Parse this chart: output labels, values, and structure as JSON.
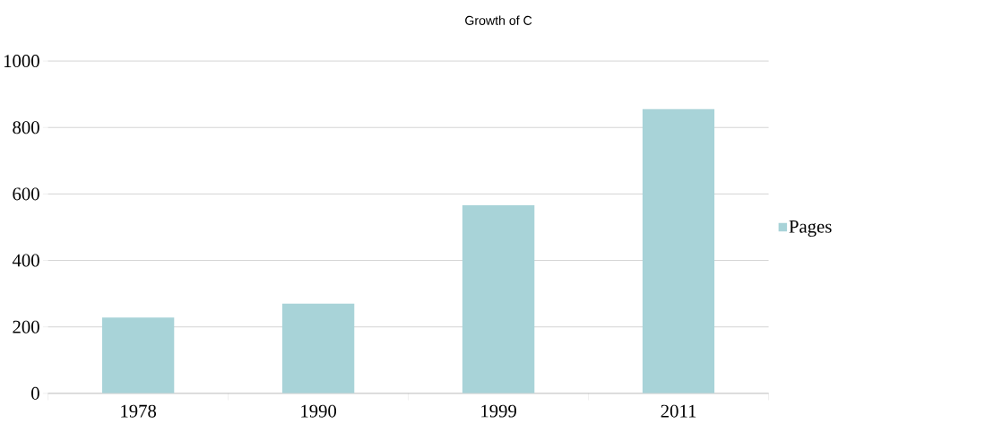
{
  "chart_data": {
    "type": "bar",
    "title": "Growth of  C",
    "categories": [
      "1978",
      "1990",
      "1999",
      "2011"
    ],
    "series": [
      {
        "name": "Pages",
        "color": "#a8d3d8",
        "values": [
          228,
          270,
          566,
          855
        ]
      }
    ],
    "ylim": [
      0,
      1000
    ],
    "yticks": [
      0,
      200,
      400,
      600,
      800,
      1000
    ],
    "grid": "y",
    "legend": "right"
  }
}
